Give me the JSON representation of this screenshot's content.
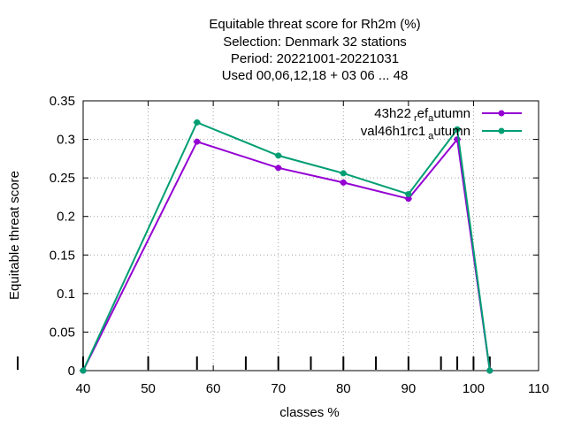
{
  "chart_data": {
    "type": "line",
    "title_lines": [
      "Equitable threat score  for Rh2m (%)",
      "Selection: Denmark     32 stations",
      "Period: 20221001-20221031",
      "Used  00,06,12,18  + 03 06 ... 48"
    ],
    "xlabel": "classes %",
    "ylabel": "Equitable threat score",
    "xlim": [
      40,
      110
    ],
    "ylim": [
      0,
      0.35
    ],
    "xticks": [
      40,
      50,
      60,
      70,
      80,
      90,
      100,
      110
    ],
    "yticks": [
      0,
      0.05,
      0.1,
      0.15,
      0.2,
      0.25,
      0.3,
      0.35
    ],
    "ytick_labels": [
      "0",
      "0.05",
      "0.1",
      "0.15",
      "0.2",
      "0.25",
      "0.3",
      "0.35"
    ],
    "grid": true,
    "legend_position": "top-right",
    "class_markers": [
      40,
      50,
      57.5,
      65,
      70,
      75,
      80,
      85,
      90,
      95,
      97.5,
      100,
      102.5
    ],
    "series": [
      {
        "name_parts": [
          "43h22",
          "r",
          "ef",
          "a",
          "utumn"
        ],
        "color": "#9400d3",
        "x": [
          40,
          57.5,
          70,
          80,
          90,
          97.5,
          102.5
        ],
        "y": [
          0.0,
          0.297,
          0.263,
          0.244,
          0.223,
          0.3,
          0.0
        ]
      },
      {
        "name_parts": [
          "val46h1rc1",
          "",
          "",
          "a",
          "utumn"
        ],
        "color": "#009e73",
        "x": [
          40,
          57.5,
          70,
          80,
          90,
          97.5,
          102.5
        ],
        "y": [
          0.0,
          0.322,
          0.279,
          0.256,
          0.229,
          0.313,
          0.0
        ]
      }
    ]
  }
}
